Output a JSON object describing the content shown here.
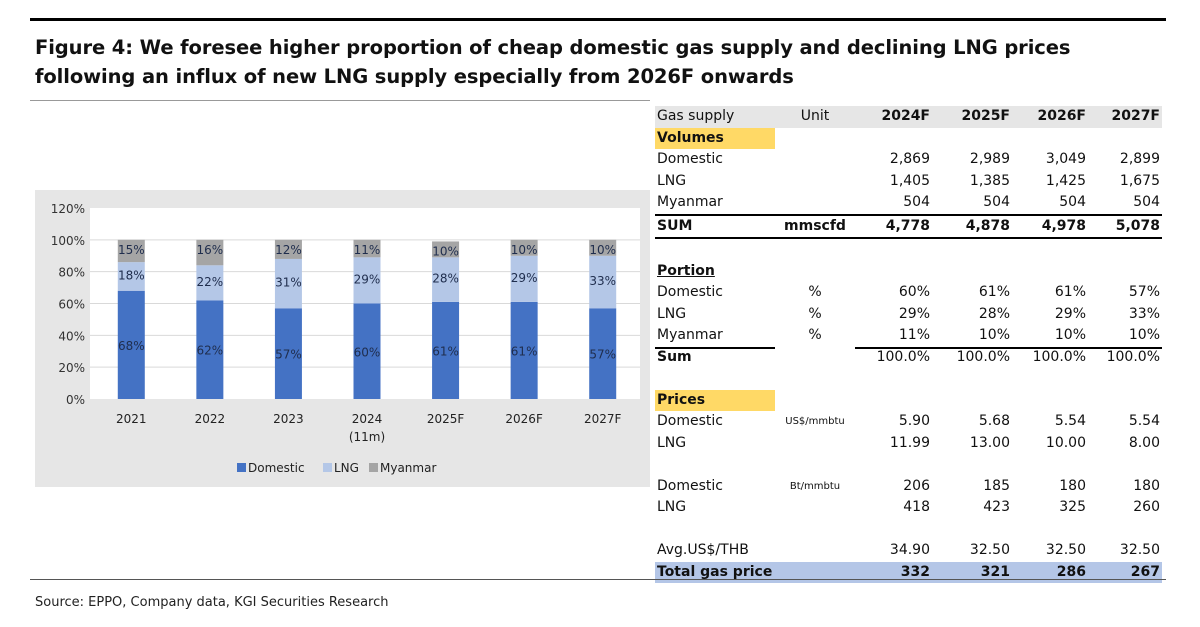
{
  "title": "Figure 4: We foresee higher proportion of cheap domestic gas supply and declining LNG prices following an influx of new LNG supply especially from 2026F onwards",
  "source": "Source: EPPO, Company data, KGI Securities Research",
  "chart_data": {
    "type": "bar",
    "stacked": true,
    "categories": [
      "2021",
      "2022",
      "2023",
      "2024",
      "2025F",
      "2026F",
      "2027F"
    ],
    "category_sublabels": [
      "",
      "",
      "",
      "(11m)",
      "",
      "",
      ""
    ],
    "series": [
      {
        "name": "Domestic",
        "color": "#4472c4",
        "values": [
          68,
          62,
          57,
          60,
          61,
          61,
          57
        ]
      },
      {
        "name": "LNG",
        "color": "#b4c7e7",
        "values": [
          18,
          22,
          31,
          29,
          28,
          29,
          33
        ]
      },
      {
        "name": "Myanmar",
        "color": "#a5a5a5",
        "values": [
          15,
          16,
          12,
          11,
          10,
          10,
          10
        ]
      }
    ],
    "yticks": [
      "0%",
      "20%",
      "40%",
      "60%",
      "80%",
      "100%",
      "120%"
    ],
    "ylim": [
      0,
      120
    ],
    "grid": true,
    "legend": "bottom"
  },
  "table": {
    "header": [
      "Gas supply",
      "Unit",
      "2024F",
      "2025F",
      "2026F",
      "2027F"
    ],
    "rows": [
      {
        "type": "hl",
        "cells": [
          "Volumes"
        ]
      },
      {
        "cells": [
          "Domestic",
          "",
          "2,869",
          "2,989",
          "3,049",
          "2,899"
        ]
      },
      {
        "cells": [
          "LNG",
          "",
          "1,405",
          "1,385",
          "1,425",
          "1,675"
        ]
      },
      {
        "type": "thick",
        "cells": [
          "Myanmar",
          "",
          "504",
          "504",
          "504",
          "504"
        ]
      },
      {
        "type": "sum",
        "cells": [
          "SUM",
          "mmscfd",
          "4,778",
          "4,878",
          "4,978",
          "5,078"
        ]
      },
      {
        "type": "blank",
        "cells": []
      },
      {
        "type": "u",
        "cells": [
          "Portion"
        ]
      },
      {
        "cells": [
          "Domestic",
          "%",
          "60%",
          "61%",
          "61%",
          "57%"
        ]
      },
      {
        "cells": [
          "LNG",
          "%",
          "29%",
          "28%",
          "29%",
          "33%"
        ]
      },
      {
        "type": "partline",
        "cells": [
          "Myanmar",
          "%",
          "11%",
          "10%",
          "10%",
          "10%"
        ]
      },
      {
        "type": "sumrow",
        "cells": [
          "Sum",
          "",
          "100.0%",
          "100.0%",
          "100.0%",
          "100.0%"
        ]
      },
      {
        "type": "blank",
        "cells": []
      },
      {
        "type": "hl",
        "cells": [
          "Prices"
        ]
      },
      {
        "cells": [
          "Domestic",
          "US$/mmbtu",
          "5.90",
          "5.68",
          "5.54",
          "5.54"
        ],
        "smallunit": true
      },
      {
        "cells": [
          "LNG",
          "",
          "11.99",
          "13.00",
          "10.00",
          "8.00"
        ]
      },
      {
        "type": "blank",
        "cells": []
      },
      {
        "cells": [
          "Domestic",
          "Bt/mmbtu",
          "206",
          "185",
          "180",
          "180"
        ],
        "smallunit": true
      },
      {
        "cells": [
          "LNG",
          "",
          "418",
          "423",
          "325",
          "260"
        ]
      },
      {
        "type": "blank",
        "cells": []
      },
      {
        "cells": [
          "Avg.US$/THB",
          "",
          "34.90",
          "32.50",
          "32.50",
          "32.50"
        ]
      },
      {
        "type": "tot",
        "cells": [
          "Total gas price",
          "",
          "332",
          "321",
          "286",
          "267"
        ]
      }
    ]
  }
}
